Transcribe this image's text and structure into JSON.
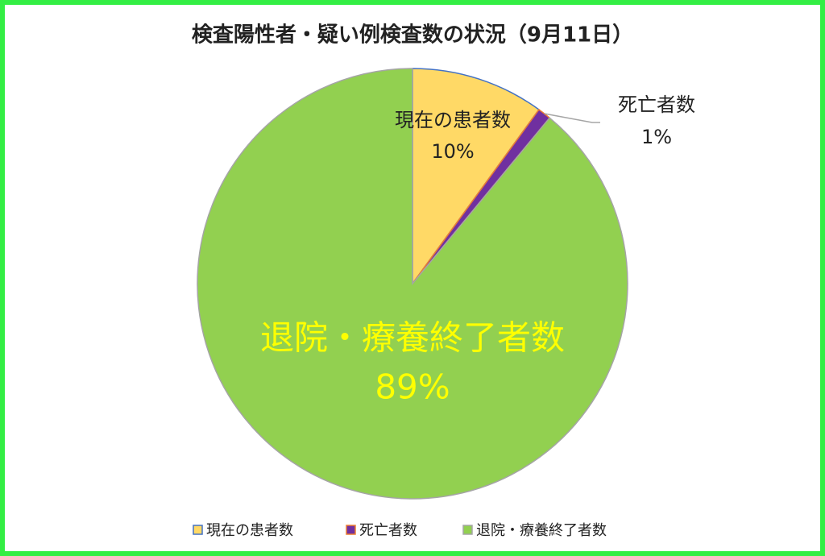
{
  "chart_data": {
    "type": "pie",
    "title": "検査陽性者・疑い例検査数の状況（9月11日）",
    "categories": [
      "現在の患者数",
      "死亡者数",
      "退院・療養終了者数"
    ],
    "values": [
      10,
      1,
      89
    ],
    "value_labels": [
      "10%",
      "1%",
      "89%"
    ],
    "colors": [
      "#ffd966",
      "#7030a0",
      "#92d050"
    ],
    "edge_colors": [
      "#4472c4",
      "#ed7d31",
      "#a5a5a5"
    ],
    "legend": "bottom"
  }
}
